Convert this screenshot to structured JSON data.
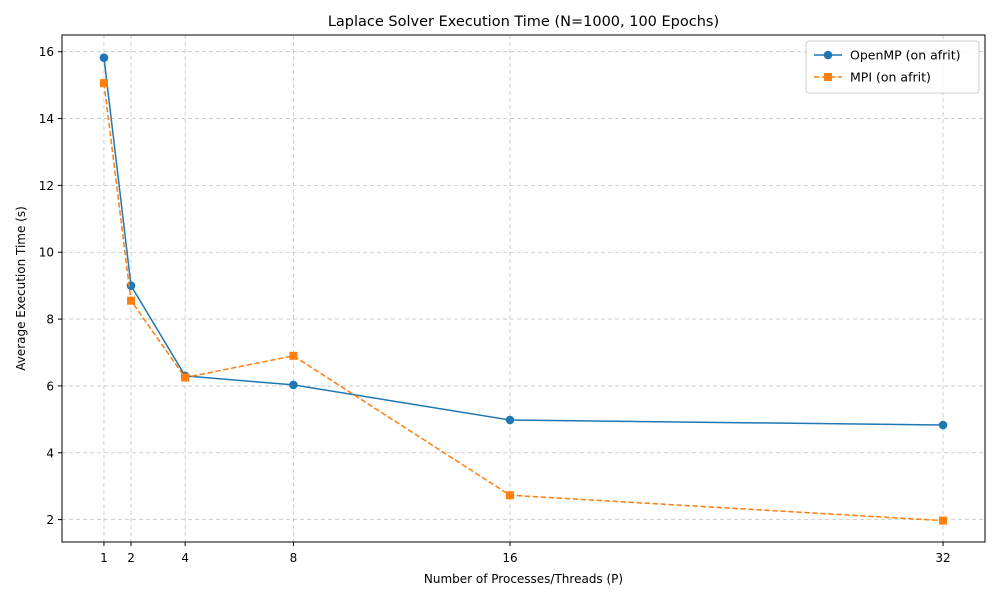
{
  "chart_data": {
    "type": "line",
    "title": "Laplace Solver Execution Time (N=1000, 100 Epochs)",
    "xlabel": "Number of Processes/Threads (P)",
    "ylabel": "Average Execution Time (s)",
    "x": [
      1,
      2,
      4,
      8,
      16,
      32
    ],
    "x_tick_labels": [
      "1",
      "2",
      "4",
      "8",
      "16",
      "32"
    ],
    "xlim": [
      -0.55,
      33.55
    ],
    "ylim": [
      1.33,
      16.5
    ],
    "y_ticks": [
      2,
      4,
      6,
      8,
      10,
      12,
      14,
      16
    ],
    "y_tick_labels": [
      "2",
      "4",
      "6",
      "8",
      "10",
      "12",
      "14",
      "16"
    ],
    "grid": true,
    "legend_position": "top-right",
    "series": [
      {
        "name": "OpenMP (on afrit)",
        "values": [
          15.82,
          9.0,
          6.3,
          6.03,
          4.98,
          4.83
        ],
        "color": "#1f77b4",
        "marker": "circle",
        "line_style": "solid"
      },
      {
        "name": "MPI (on afrit)",
        "values": [
          15.06,
          8.55,
          6.25,
          6.9,
          2.73,
          1.97
        ],
        "color": "#ff7f0e",
        "marker": "square",
        "line_style": "dashed"
      }
    ]
  }
}
